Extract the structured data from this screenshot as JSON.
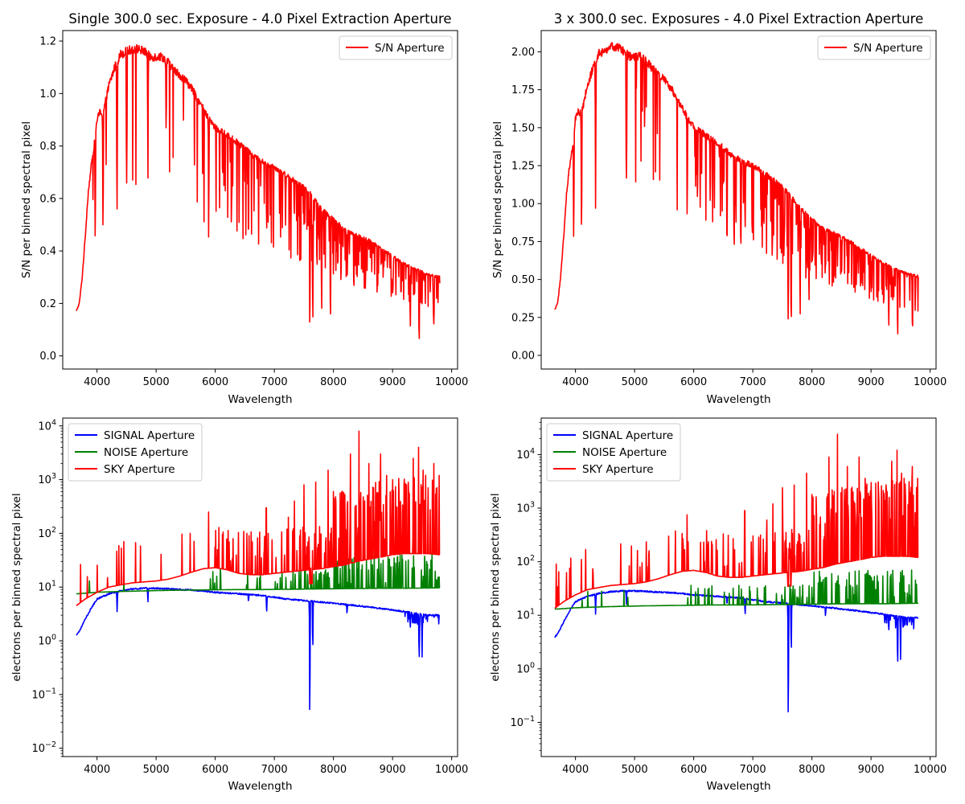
{
  "figure": {
    "background": "#ffffff",
    "colors": {
      "sn": "#ff0000",
      "signal": "#0000ff",
      "noise": "#008000",
      "sky": "#ff0000"
    }
  },
  "chart_data": [
    {
      "id": "sn_single",
      "type": "line",
      "title": "Single 300.0 sec. Exposure - 4.0 Pixel Extraction Aperture",
      "xlabel": "Wavelength",
      "ylabel": "S/N per binned spectral pixel",
      "xlim": [
        3420,
        10100
      ],
      "ylim": [
        -0.05,
        1.24
      ],
      "yscale": "linear",
      "xticks": [
        4000,
        5000,
        6000,
        7000,
        8000,
        9000,
        10000
      ],
      "xtick_labels": [
        "4000",
        "5000",
        "6000",
        "7000",
        "8000",
        "9000",
        "10000"
      ],
      "yticks": [
        0.0,
        0.2,
        0.4,
        0.6,
        0.8,
        1.0,
        1.2
      ],
      "ytick_labels": [
        "0.0",
        "0.2",
        "0.4",
        "0.6",
        "0.8",
        "1.0",
        "1.2"
      ],
      "legend": "upper-right",
      "series": [
        {
          "name": "S/N Aperture",
          "color": "#ff0000",
          "x": [
            3650,
            3700,
            3750,
            3800,
            3850,
            3900,
            3950,
            4000,
            4050,
            4100,
            4200,
            4300,
            4400,
            4500,
            4600,
            4700,
            4800,
            4900,
            5000,
            5100,
            5200,
            5300,
            5400,
            5500,
            5600,
            5700,
            5800,
            5900,
            6000,
            6200,
            6400,
            6600,
            6800,
            7000,
            7200,
            7400,
            7600,
            7800,
            8000,
            8200,
            8400,
            8600,
            8800,
            9000,
            9200,
            9400,
            9600,
            9800
          ],
          "y": [
            0.17,
            0.2,
            0.3,
            0.45,
            0.62,
            0.72,
            0.8,
            0.9,
            0.93,
            0.92,
            1.03,
            1.1,
            1.15,
            1.16,
            1.17,
            1.17,
            1.16,
            1.14,
            1.14,
            1.14,
            1.12,
            1.09,
            1.07,
            1.05,
            1.02,
            0.98,
            0.94,
            0.9,
            0.87,
            0.84,
            0.81,
            0.77,
            0.74,
            0.72,
            0.69,
            0.66,
            0.62,
            0.56,
            0.52,
            0.48,
            0.46,
            0.44,
            0.41,
            0.38,
            0.35,
            0.33,
            0.31,
            0.3
          ]
        }
      ],
      "absorption_dips": [
        [
          3970,
          0.35
        ],
        [
          4102,
          0.38
        ],
        [
          4340,
          0.56
        ],
        [
          4861,
          0.62
        ],
        [
          5170,
          0.8
        ],
        [
          5890,
          0.43
        ],
        [
          6280,
          0.52
        ],
        [
          6563,
          0.34
        ],
        [
          6870,
          0.42
        ],
        [
          7190,
          0.5
        ],
        [
          7600,
          0.0
        ],
        [
          7650,
          0.02
        ],
        [
          7800,
          0.1
        ],
        [
          7950,
          0.12
        ],
        [
          8230,
          0.3
        ],
        [
          8500,
          0.28
        ],
        [
          9000,
          0.2
        ],
        [
          9300,
          0.05
        ],
        [
          9450,
          0.01
        ],
        [
          9700,
          0.07
        ]
      ]
    },
    {
      "id": "sn_triple",
      "type": "line",
      "title": "3 x 300.0 sec. Exposures - 4.0 Pixel Extraction Aperture",
      "xlabel": "Wavelength",
      "ylabel": "S/N per binned spectral pixel",
      "xlim": [
        3420,
        10100
      ],
      "ylim": [
        -0.09,
        2.14
      ],
      "yscale": "linear",
      "xticks": [
        4000,
        5000,
        6000,
        7000,
        8000,
        9000,
        10000
      ],
      "xtick_labels": [
        "4000",
        "5000",
        "6000",
        "7000",
        "8000",
        "9000",
        "10000"
      ],
      "yticks": [
        0.0,
        0.25,
        0.5,
        0.75,
        1.0,
        1.25,
        1.5,
        1.75,
        2.0
      ],
      "ytick_labels": [
        "0.00",
        "0.25",
        "0.50",
        "0.75",
        "1.00",
        "1.25",
        "1.50",
        "1.75",
        "2.00"
      ],
      "legend": "upper-right",
      "series": [
        {
          "name": "S/N Aperture",
          "color": "#ff0000",
          "x": [
            3650,
            3700,
            3750,
            3800,
            3850,
            3900,
            3950,
            4000,
            4050,
            4100,
            4200,
            4300,
            4400,
            4500,
            4600,
            4700,
            4800,
            4900,
            5000,
            5100,
            5200,
            5300,
            5400,
            5500,
            5600,
            5700,
            5800,
            5900,
            6000,
            6200,
            6400,
            6600,
            6800,
            7000,
            7200,
            7400,
            7600,
            7800,
            8000,
            8200,
            8400,
            8600,
            8800,
            9000,
            9200,
            9400,
            9600,
            9800
          ],
          "y": [
            0.3,
            0.35,
            0.52,
            0.78,
            1.07,
            1.25,
            1.38,
            1.56,
            1.61,
            1.59,
            1.78,
            1.9,
            1.99,
            2.01,
            2.03,
            2.03,
            2.01,
            1.97,
            1.97,
            1.97,
            1.94,
            1.89,
            1.85,
            1.82,
            1.77,
            1.7,
            1.63,
            1.56,
            1.51,
            1.45,
            1.4,
            1.33,
            1.28,
            1.25,
            1.2,
            1.14,
            1.07,
            0.97,
            0.9,
            0.83,
            0.8,
            0.76,
            0.71,
            0.66,
            0.61,
            0.57,
            0.54,
            0.52
          ]
        }
      ],
      "absorption_dips": [
        [
          3970,
          0.6
        ],
        [
          4102,
          0.66
        ],
        [
          4340,
          0.97
        ],
        [
          4861,
          1.07
        ],
        [
          5170,
          1.38
        ],
        [
          5890,
          0.75
        ],
        [
          6280,
          0.9
        ],
        [
          6563,
          0.59
        ],
        [
          6870,
          0.73
        ],
        [
          7190,
          0.87
        ],
        [
          7600,
          0.0
        ],
        [
          7650,
          0.03
        ],
        [
          7800,
          0.17
        ],
        [
          7950,
          0.21
        ],
        [
          8230,
          0.52
        ],
        [
          8500,
          0.48
        ],
        [
          9000,
          0.35
        ],
        [
          9300,
          0.09
        ],
        [
          9450,
          0.02
        ],
        [
          9700,
          0.12
        ]
      ]
    },
    {
      "id": "counts_single",
      "type": "line",
      "title": "",
      "xlabel": "Wavelength",
      "ylabel": "electrons per binned spectral pixel",
      "xlim": [
        3420,
        10100
      ],
      "ylim": [
        0.007,
        14000
      ],
      "yscale": "log",
      "xticks": [
        4000,
        5000,
        6000,
        7000,
        8000,
        9000,
        10000
      ],
      "xtick_labels": [
        "4000",
        "5000",
        "6000",
        "7000",
        "8000",
        "9000",
        "10000"
      ],
      "yticks": [
        0.01,
        0.1,
        1,
        10,
        100,
        1000,
        10000
      ],
      "ytick_labels": [
        "10",
        "10",
        "10",
        "10",
        "10",
        "10",
        "10"
      ],
      "ytick_exponents": [
        "−2",
        "−1",
        "0",
        "1",
        "2",
        "3",
        "4"
      ],
      "legend": "upper-left",
      "series": [
        {
          "name": "SIGNAL Aperture",
          "color": "#0000ff",
          "x": [
            3650,
            3700,
            3800,
            3900,
            4000,
            4200,
            4400,
            4600,
            4800,
            5000,
            5200,
            5400,
            5600,
            5800,
            6000,
            6400,
            6800,
            7200,
            7600,
            8000,
            8400,
            8800,
            9200,
            9600,
            9800
          ],
          "y": [
            1.3,
            1.5,
            2.5,
            4,
            6,
            7.5,
            8.5,
            9.2,
            9.5,
            9.5,
            9.3,
            9,
            8.8,
            8.5,
            8,
            7.5,
            7,
            6,
            5.5,
            5,
            4.5,
            4,
            3.5,
            3,
            3
          ]
        },
        {
          "name": "NOISE Aperture",
          "color": "#008000",
          "x": [
            3650,
            3800,
            4000,
            4400,
            4800,
            5200,
            5600,
            6000,
            6400,
            6800,
            7200,
            7600,
            8000,
            8400,
            8800,
            9200,
            9600,
            9800
          ],
          "y": [
            7.5,
            7.7,
            8,
            8.3,
            8.5,
            8.7,
            8.8,
            8.9,
            9,
            9,
            9.1,
            9.2,
            9.3,
            9.4,
            9.5,
            9.5,
            9.6,
            9.7
          ]
        },
        {
          "name": "SKY Aperture",
          "color": "#ff0000",
          "x": [
            3650,
            3800,
            4000,
            4200,
            4400,
            4600,
            4800,
            5000,
            5200,
            5400,
            5600,
            5800,
            6000,
            6200,
            6400,
            6600,
            6800,
            7000,
            7200,
            7400,
            7600,
            7800,
            8000,
            8200,
            8400,
            8600,
            8800,
            9000,
            9200,
            9400,
            9600,
            9800
          ],
          "y": [
            4.5,
            6,
            8,
            10,
            11,
            12,
            12.5,
            13,
            14,
            16,
            19,
            22,
            23,
            21,
            18,
            17,
            17,
            18,
            19,
            20,
            21,
            22,
            24,
            26,
            30,
            33,
            36,
            40,
            42,
            42,
            42,
            40
          ]
        }
      ],
      "sky_lines": [
        [
          5577,
          100
        ],
        [
          5890,
          250
        ],
        [
          6300,
          80
        ],
        [
          6863,
          300
        ],
        [
          7240,
          200
        ],
        [
          7340,
          400
        ],
        [
          7500,
          800
        ],
        [
          7700,
          900
        ],
        [
          7910,
          1500
        ],
        [
          8000,
          600
        ],
        [
          8290,
          3000
        ],
        [
          8430,
          8000
        ],
        [
          8600,
          2000
        ],
        [
          8800,
          3000
        ],
        [
          8900,
          1200
        ],
        [
          9000,
          1000
        ],
        [
          9350,
          2500
        ],
        [
          9440,
          4000
        ],
        [
          9520,
          1500
        ],
        [
          9560,
          1200
        ],
        [
          9700,
          2000
        ],
        [
          9790,
          1200
        ]
      ],
      "signal_dips": [
        [
          4340,
          3.5
        ],
        [
          4861,
          5
        ],
        [
          6563,
          5
        ],
        [
          6870,
          3
        ],
        [
          7600,
          0.014
        ],
        [
          7650,
          0.5
        ],
        [
          8230,
          3
        ],
        [
          9300,
          1.5
        ],
        [
          9450,
          0.3
        ],
        [
          9500,
          0.5
        ]
      ]
    },
    {
      "id": "counts_triple",
      "type": "line",
      "title": "",
      "xlabel": "Wavelength",
      "ylabel": "electrons per binned spectral pixel",
      "xlim": [
        3420,
        10100
      ],
      "ylim": [
        0.023,
        48000
      ],
      "yscale": "log",
      "xticks": [
        4000,
        5000,
        6000,
        7000,
        8000,
        9000,
        10000
      ],
      "xtick_labels": [
        "4000",
        "5000",
        "6000",
        "7000",
        "8000",
        "9000",
        "10000"
      ],
      "yticks": [
        0.1,
        1,
        10,
        100,
        1000,
        10000
      ],
      "ytick_labels": [
        "10",
        "10",
        "10",
        "10",
        "10",
        "10"
      ],
      "ytick_exponents": [
        "−1",
        "0",
        "1",
        "2",
        "3",
        "4"
      ],
      "legend": "upper-left",
      "series": [
        {
          "name": "SIGNAL Aperture",
          "color": "#0000ff",
          "x": [
            3650,
            3700,
            3800,
            3900,
            4000,
            4200,
            4400,
            4600,
            4800,
            5000,
            5200,
            5400,
            5600,
            5800,
            6000,
            6400,
            6800,
            7200,
            7600,
            8000,
            8400,
            8800,
            9200,
            9600,
            9800
          ],
          "y": [
            3.9,
            4.5,
            7.5,
            12,
            18,
            22.5,
            25.5,
            27.6,
            28.5,
            28.5,
            27.9,
            27,
            26.4,
            25.5,
            24,
            22.5,
            21,
            18,
            16.5,
            15,
            13.5,
            12,
            10.5,
            9,
            9
          ]
        },
        {
          "name": "NOISE Aperture",
          "color": "#008000",
          "x": [
            3650,
            3800,
            4000,
            4400,
            4800,
            5200,
            5600,
            6000,
            6400,
            6800,
            7200,
            7600,
            8000,
            8400,
            8800,
            9200,
            9600,
            9800
          ],
          "y": [
            13,
            13.3,
            13.8,
            14.3,
            14.7,
            15,
            15.2,
            15.4,
            15.6,
            15.6,
            15.7,
            15.9,
            16.1,
            16.3,
            16.4,
            16.4,
            16.6,
            16.8
          ]
        },
        {
          "name": "SKY Aperture",
          "color": "#ff0000",
          "x": [
            3650,
            3800,
            4000,
            4200,
            4400,
            4600,
            4800,
            5000,
            5200,
            5400,
            5600,
            5800,
            6000,
            6200,
            6400,
            6600,
            6800,
            7000,
            7200,
            7400,
            7600,
            7800,
            8000,
            8200,
            8400,
            8600,
            8800,
            9000,
            9200,
            9400,
            9600,
            9800
          ],
          "y": [
            13.5,
            18,
            24,
            30,
            33,
            36,
            37.5,
            39,
            42,
            48,
            57,
            66,
            69,
            63,
            54,
            51,
            51,
            54,
            57,
            60,
            63,
            66,
            72,
            78,
            90,
            99,
            108,
            120,
            126,
            126,
            126,
            120
          ]
        }
      ],
      "sky_lines": [
        [
          5577,
          300
        ],
        [
          5890,
          750
        ],
        [
          6300,
          240
        ],
        [
          6863,
          900
        ],
        [
          7240,
          600
        ],
        [
          7340,
          1200
        ],
        [
          7500,
          2400
        ],
        [
          7700,
          2700
        ],
        [
          7910,
          4500
        ],
        [
          8000,
          1800
        ],
        [
          8290,
          9000
        ],
        [
          8430,
          24000
        ],
        [
          8600,
          6000
        ],
        [
          8800,
          9000
        ],
        [
          8900,
          3600
        ],
        [
          9000,
          3000
        ],
        [
          9350,
          7500
        ],
        [
          9440,
          12000
        ],
        [
          9520,
          4500
        ],
        [
          9560,
          3600
        ],
        [
          9700,
          6000
        ],
        [
          9790,
          3600
        ]
      ],
      "signal_dips": [
        [
          4340,
          10.5
        ],
        [
          4861,
          15
        ],
        [
          6563,
          15
        ],
        [
          6870,
          9
        ],
        [
          7600,
          0.042
        ],
        [
          7650,
          1.5
        ],
        [
          8230,
          9
        ],
        [
          9300,
          4.5
        ],
        [
          9450,
          0.8
        ],
        [
          9500,
          1.5
        ]
      ]
    }
  ]
}
